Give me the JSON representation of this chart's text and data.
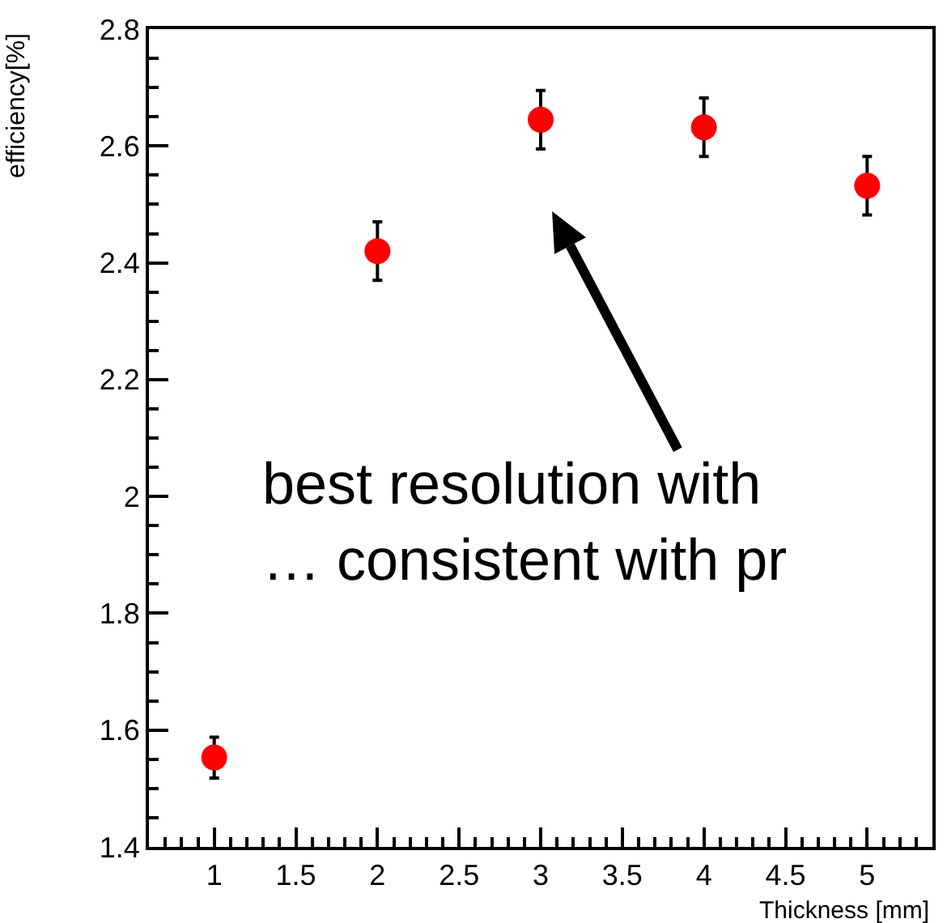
{
  "chart_data": {
    "type": "scatter",
    "xlabel": "Thickness [mm]",
    "ylabel": "efficiency[%]",
    "x": [
      1,
      2,
      3,
      4,
      5
    ],
    "series": [
      {
        "color": "#ff0000",
        "values": [
          1.553,
          2.42,
          2.645,
          2.632,
          2.532
        ],
        "errors": [
          0.035,
          0.05,
          0.05,
          0.05,
          0.05
        ]
      }
    ],
    "xlim": [
      0.6,
      5.4
    ],
    "xticks": [
      1,
      1.5,
      2,
      2.5,
      3,
      3.5,
      4,
      4.5,
      5
    ],
    "ylim": [
      1.4,
      2.8
    ],
    "yticks": [
      1.4,
      1.6,
      1.8,
      2,
      2.2,
      2.4,
      2.6,
      2.8
    ],
    "marker": "circle",
    "annotations": [
      "best resolution with\n… consistent with pr"
    ]
  }
}
